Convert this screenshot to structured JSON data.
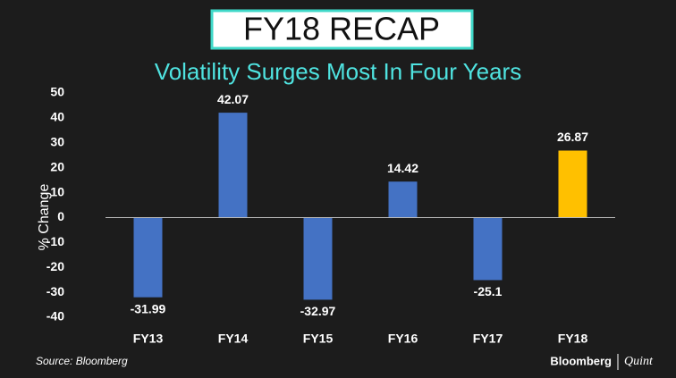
{
  "chart_data": {
    "type": "bar",
    "title": "FY18 RECAP",
    "subtitle": "Volatility Surges Most In Four Years",
    "y_label": "% Change",
    "categories": [
      "FY13",
      "FY14",
      "FY15",
      "FY16",
      "FY17",
      "FY18"
    ],
    "values": [
      -31.99,
      42.07,
      -32.97,
      14.42,
      -25.1,
      26.87
    ],
    "colors": [
      "#4472c4",
      "#4472c4",
      "#4472c4",
      "#4472c4",
      "#4472c4",
      "#ffc000"
    ],
    "ylim": [
      -40,
      50
    ],
    "yticks": [
      -40,
      -30,
      -20,
      -10,
      0,
      10,
      20,
      30,
      40,
      50
    ],
    "source": "Source: Bloomberg",
    "brand": [
      "Bloomberg",
      "Quint"
    ]
  }
}
